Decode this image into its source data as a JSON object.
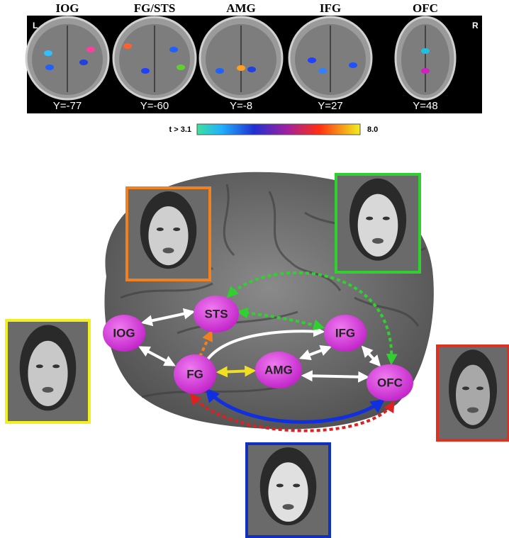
{
  "panel": {
    "regions": [
      {
        "label": "IOG",
        "coord": "Y=-77"
      },
      {
        "label": "FG/STS",
        "coord": "Y=-60"
      },
      {
        "label": "AMG",
        "coord": "Y=-8"
      },
      {
        "label": "IFG",
        "coord": "Y=27"
      },
      {
        "label": "OFC",
        "coord": "Y=48"
      }
    ],
    "hemisphere_left": "L",
    "hemisphere_right": "R",
    "colorbar": {
      "min_label": "t > 3.1",
      "max_label": "8.0"
    }
  },
  "network": {
    "nodes": [
      {
        "label": "IOG"
      },
      {
        "label": "STS"
      },
      {
        "label": "IFG"
      },
      {
        "label": "FG"
      },
      {
        "label": "AMG"
      },
      {
        "label": "OFC"
      }
    ]
  }
}
